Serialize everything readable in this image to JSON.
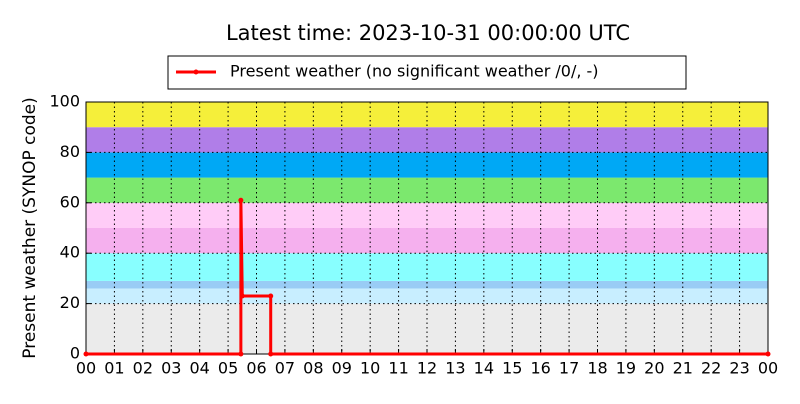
{
  "chart_data": {
    "type": "line",
    "title": "Latest time: 2023-10-31 00:00:00 UTC",
    "ylabel": "Present weather (SYNOP code)",
    "xlim": [
      0,
      24
    ],
    "xticks": [
      {
        "value": 0,
        "label": "00"
      },
      {
        "value": 1,
        "label": "01"
      },
      {
        "value": 2,
        "label": "02"
      },
      {
        "value": 3,
        "label": "03"
      },
      {
        "value": 4,
        "label": "04"
      },
      {
        "value": 5,
        "label": "05"
      },
      {
        "value": 6,
        "label": "06"
      },
      {
        "value": 7,
        "label": "07"
      },
      {
        "value": 8,
        "label": "08"
      },
      {
        "value": 9,
        "label": "09"
      },
      {
        "value": 10,
        "label": "10"
      },
      {
        "value": 11,
        "label": "11"
      },
      {
        "value": 12,
        "label": "12"
      },
      {
        "value": 13,
        "label": "13"
      },
      {
        "value": 14,
        "label": "14"
      },
      {
        "value": 15,
        "label": "15"
      },
      {
        "value": 16,
        "label": "16"
      },
      {
        "value": 17,
        "label": "17"
      },
      {
        "value": 18,
        "label": "18"
      },
      {
        "value": 19,
        "label": "19"
      },
      {
        "value": 20,
        "label": "20"
      },
      {
        "value": 21,
        "label": "21"
      },
      {
        "value": 22,
        "label": "22"
      },
      {
        "value": 23,
        "label": "23"
      },
      {
        "value": 24,
        "label": "00"
      }
    ],
    "ylim": [
      0,
      100
    ],
    "yticks": [
      0,
      20,
      40,
      60,
      80,
      100
    ],
    "grid": true,
    "bands": [
      {
        "from": 0,
        "to": 20,
        "color": "#ebebeb"
      },
      {
        "from": 20,
        "to": 26,
        "color": "#c8eeff"
      },
      {
        "from": 26,
        "to": 29,
        "color": "#99ccf5"
      },
      {
        "from": 29,
        "to": 40,
        "color": "#88ffff"
      },
      {
        "from": 40,
        "to": 50,
        "color": "#f5b0ee"
      },
      {
        "from": 50,
        "to": 60,
        "color": "#ffccf7"
      },
      {
        "from": 60,
        "to": 70,
        "color": "#7ce86e"
      },
      {
        "from": 70,
        "to": 80,
        "color": "#00a8f5"
      },
      {
        "from": 80,
        "to": 90,
        "color": "#b07ee8"
      },
      {
        "from": 90,
        "to": 100,
        "color": "#f5ef3a"
      }
    ],
    "legend_position": "top",
    "series": [
      {
        "name": "Present weather (no significant weather /0/, -)",
        "color": "#ff0000",
        "x": [
          0,
          5.45,
          5.45,
          5.5,
          6.5,
          6.5,
          24
        ],
        "values": [
          0,
          0,
          61,
          23,
          23,
          0,
          0
        ]
      }
    ]
  }
}
